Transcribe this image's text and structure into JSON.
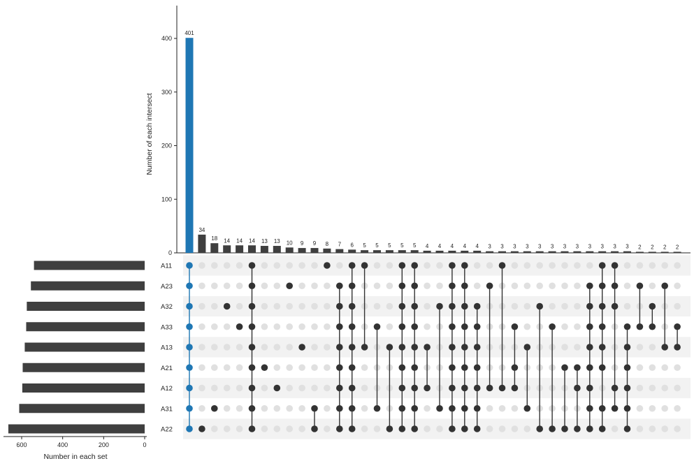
{
  "chart_data": {
    "type": "upset",
    "ylabel": "Number of each intersect",
    "xlabel_sets": "Number in each set",
    "intersect_yticks": [
      0,
      100,
      200,
      300,
      400
    ],
    "intersect_ylim": [
      0,
      460
    ],
    "set_xticks": [
      600,
      400,
      200,
      0
    ],
    "set_xlim": [
      0,
      675
    ],
    "highlight_color": "#1f77b4",
    "bar_color": "#3f3f3f",
    "sets": [
      {
        "name": "A11",
        "size": 540
      },
      {
        "name": "A23",
        "size": 555
      },
      {
        "name": "A32",
        "size": 575
      },
      {
        "name": "A33",
        "size": 578
      },
      {
        "name": "A13",
        "size": 585
      },
      {
        "name": "A21",
        "size": 595
      },
      {
        "name": "A12",
        "size": 597
      },
      {
        "name": "A31",
        "size": 612
      },
      {
        "name": "A22",
        "size": 665
      }
    ],
    "intersections": [
      {
        "count": 401,
        "label": "401",
        "sets": [
          "A11",
          "A23",
          "A32",
          "A33",
          "A13",
          "A21",
          "A12",
          "A31",
          "A22"
        ],
        "highlight": true
      },
      {
        "count": 34,
        "label": "34",
        "sets": [
          "A22"
        ]
      },
      {
        "count": 18,
        "label": "18",
        "sets": [
          "A31"
        ]
      },
      {
        "count": 14,
        "label": "14",
        "sets": [
          "A32"
        ]
      },
      {
        "count": 14,
        "label": "14",
        "sets": [
          "A33"
        ]
      },
      {
        "count": 14,
        "label": "14",
        "sets": [
          "A11",
          "A23",
          "A32",
          "A33",
          "A13",
          "A21",
          "A12",
          "A31",
          "A22"
        ]
      },
      {
        "count": 13,
        "label": "13",
        "sets": [
          "A21"
        ]
      },
      {
        "count": 13,
        "label": "13",
        "sets": [
          "A12"
        ]
      },
      {
        "count": 10,
        "label": "10",
        "sets": [
          "A23"
        ]
      },
      {
        "count": 9,
        "label": "9",
        "sets": [
          "A13"
        ]
      },
      {
        "count": 9,
        "label": "9",
        "sets": [
          "A31",
          "A22"
        ]
      },
      {
        "count": 8,
        "label": "8",
        "sets": [
          "A11"
        ]
      },
      {
        "count": 7,
        "label": "7",
        "sets": [
          "A23",
          "A32",
          "A33",
          "A13",
          "A21",
          "A12",
          "A31",
          "A22"
        ]
      },
      {
        "count": 6,
        "label": "6",
        "sets": [
          "A11",
          "A23",
          "A32",
          "A33",
          "A13",
          "A21",
          "A12",
          "A31",
          "A22"
        ]
      },
      {
        "count": 5,
        "label": "5",
        "sets": [
          "A11",
          "A13"
        ]
      },
      {
        "count": 5,
        "label": "5",
        "sets": [
          "A33",
          "A31"
        ]
      },
      {
        "count": 5,
        "label": "5",
        "sets": [
          "A13",
          "A22"
        ]
      },
      {
        "count": 5,
        "label": "5",
        "sets": [
          "A11",
          "A23",
          "A32",
          "A33",
          "A13",
          "A21",
          "A12",
          "A31",
          "A22"
        ]
      },
      {
        "count": 5,
        "label": "5",
        "sets": [
          "A11",
          "A23",
          "A32",
          "A33",
          "A13",
          "A21",
          "A12",
          "A31",
          "A22"
        ]
      },
      {
        "count": 4,
        "label": "4",
        "sets": [
          "A13",
          "A12"
        ]
      },
      {
        "count": 4,
        "label": "4",
        "sets": [
          "A32",
          "A31"
        ]
      },
      {
        "count": 4,
        "label": "4",
        "sets": [
          "A11",
          "A23",
          "A32",
          "A33",
          "A13",
          "A21",
          "A12",
          "A31",
          "A22"
        ]
      },
      {
        "count": 4,
        "label": "4",
        "sets": [
          "A11",
          "A23",
          "A32",
          "A33",
          "A13",
          "A21",
          "A12",
          "A31",
          "A22"
        ]
      },
      {
        "count": 4,
        "label": "4",
        "sets": [
          "A32",
          "A33",
          "A13",
          "A21",
          "A12",
          "A31",
          "A22"
        ]
      },
      {
        "count": 3,
        "label": "3",
        "sets": [
          "A23",
          "A12"
        ]
      },
      {
        "count": 3,
        "label": "3",
        "sets": [
          "A11",
          "A12"
        ]
      },
      {
        "count": 3,
        "label": "3",
        "sets": [
          "A33",
          "A21",
          "A12"
        ]
      },
      {
        "count": 3,
        "label": "3",
        "sets": [
          "A13",
          "A31"
        ]
      },
      {
        "count": 3,
        "label": "3",
        "sets": [
          "A32",
          "A22"
        ]
      },
      {
        "count": 3,
        "label": "3",
        "sets": [
          "A33",
          "A22"
        ]
      },
      {
        "count": 3,
        "label": "3",
        "sets": [
          "A21",
          "A22"
        ]
      },
      {
        "count": 3,
        "label": "3",
        "sets": [
          "A21",
          "A12",
          "A22"
        ]
      },
      {
        "count": 3,
        "label": "3",
        "sets": [
          "A23",
          "A32",
          "A33",
          "A13",
          "A21",
          "A12",
          "A31",
          "A22"
        ]
      },
      {
        "count": 3,
        "label": "3",
        "sets": [
          "A11",
          "A23",
          "A32",
          "A33",
          "A13",
          "A21",
          "A31",
          "A22"
        ]
      },
      {
        "count": 3,
        "label": "3",
        "sets": [
          "A11",
          "A23",
          "A32",
          "A12",
          "A31"
        ]
      },
      {
        "count": 3,
        "label": "3",
        "sets": [
          "A33",
          "A13",
          "A21",
          "A12",
          "A31",
          "A22"
        ]
      },
      {
        "count": 2,
        "label": "2",
        "sets": [
          "A23",
          "A33"
        ]
      },
      {
        "count": 2,
        "label": "2",
        "sets": [
          "A32",
          "A33"
        ]
      },
      {
        "count": 2,
        "label": "2",
        "sets": [
          "A23",
          "A13"
        ]
      },
      {
        "count": 2,
        "label": "2",
        "sets": [
          "A33",
          "A13"
        ]
      }
    ]
  }
}
